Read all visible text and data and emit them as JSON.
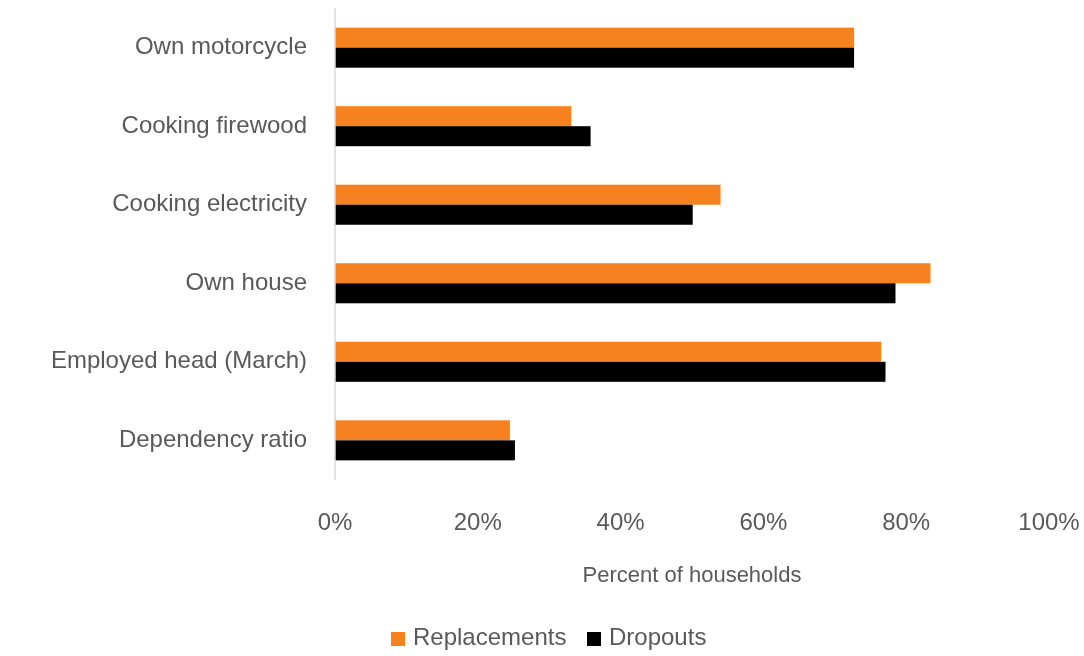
{
  "chart_data": {
    "type": "bar",
    "orientation": "horizontal",
    "xlabel": "Percent of households",
    "categories": [
      "Own motorcycle",
      "Cooking firewood",
      "Cooking electricity",
      "Own house",
      "Employed head (March)",
      "Dependency ratio"
    ],
    "series": [
      {
        "name": "Replacements",
        "color": "#f5821f",
        "values": [
          72.7,
          33.1,
          54.0,
          83.4,
          76.5,
          24.5
        ]
      },
      {
        "name": "Dropouts",
        "color": "#000000",
        "values": [
          72.7,
          35.8,
          50.1,
          78.5,
          77.1,
          25.2
        ]
      }
    ],
    "xlim": [
      0,
      100
    ],
    "xticks": [
      {
        "value": 0,
        "label": "0%"
      },
      {
        "value": 20,
        "label": "20%"
      },
      {
        "value": 40,
        "label": "40%"
      },
      {
        "value": 60,
        "label": "60%"
      },
      {
        "value": 80,
        "label": "80%"
      },
      {
        "value": 100,
        "label": "100%"
      }
    ],
    "grid": false,
    "legend": "bottom"
  }
}
